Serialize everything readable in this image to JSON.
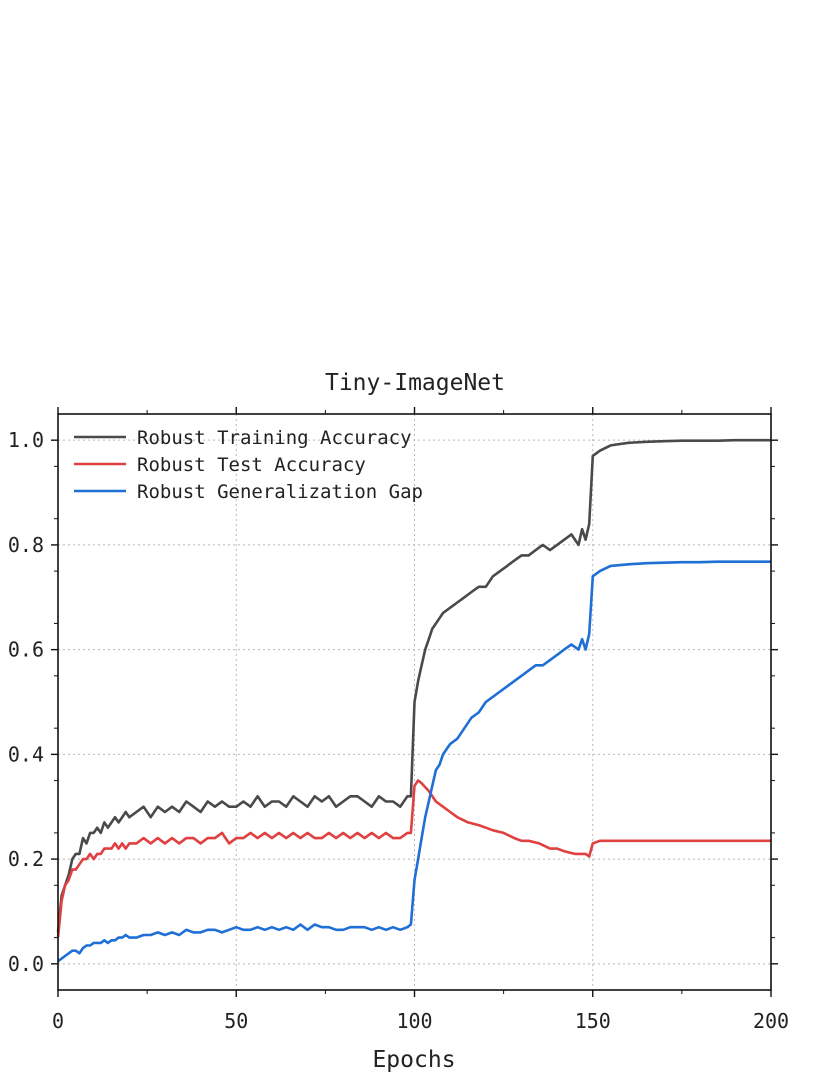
{
  "chart_data": {
    "type": "line",
    "title": "Tiny-ImageNet",
    "xlabel": "Epochs",
    "ylabel": "",
    "xlim": [
      0,
      200
    ],
    "ylim": [
      -0.05,
      1.05
    ],
    "xticks": [
      0,
      50,
      100,
      150,
      200
    ],
    "xtick_labels": [
      "0",
      "50",
      "100",
      "150",
      "200"
    ],
    "yticks": [
      0.0,
      0.2,
      0.4,
      0.6,
      0.8,
      1.0
    ],
    "ytick_labels": [
      "0.0",
      "0.2",
      "0.4",
      "0.6",
      "0.8",
      "1.0"
    ],
    "grid": true,
    "legend_position": "upper-left",
    "colors": {
      "train": "#4a4a4a",
      "test": "#e04040",
      "gap": "#1f6fd6",
      "grid": "#b8b8b8"
    },
    "series": [
      {
        "name": "Robust Training Accuracy",
        "x": [
          0,
          1,
          2,
          3,
          4,
          5,
          6,
          7,
          8,
          9,
          10,
          11,
          12,
          13,
          14,
          15,
          16,
          17,
          18,
          19,
          20,
          22,
          24,
          26,
          28,
          30,
          32,
          34,
          36,
          38,
          40,
          42,
          44,
          46,
          48,
          50,
          52,
          54,
          56,
          58,
          60,
          62,
          64,
          66,
          68,
          70,
          72,
          74,
          76,
          78,
          80,
          82,
          84,
          86,
          88,
          90,
          92,
          94,
          96,
          98,
          99,
          100,
          101,
          102,
          103,
          104,
          105,
          106,
          107,
          108,
          110,
          112,
          114,
          116,
          118,
          120,
          122,
          124,
          126,
          128,
          130,
          132,
          134,
          136,
          138,
          140,
          142,
          144,
          146,
          147,
          148,
          149,
          150,
          152,
          155,
          160,
          165,
          170,
          175,
          180,
          185,
          190,
          195,
          200
        ],
        "values": [
          0.06,
          0.13,
          0.15,
          0.17,
          0.2,
          0.21,
          0.21,
          0.24,
          0.23,
          0.25,
          0.25,
          0.26,
          0.25,
          0.27,
          0.26,
          0.27,
          0.28,
          0.27,
          0.28,
          0.29,
          0.28,
          0.29,
          0.3,
          0.28,
          0.3,
          0.29,
          0.3,
          0.29,
          0.31,
          0.3,
          0.29,
          0.31,
          0.3,
          0.31,
          0.3,
          0.3,
          0.31,
          0.3,
          0.32,
          0.3,
          0.31,
          0.31,
          0.3,
          0.32,
          0.31,
          0.3,
          0.32,
          0.31,
          0.32,
          0.3,
          0.31,
          0.32,
          0.32,
          0.31,
          0.3,
          0.32,
          0.31,
          0.31,
          0.3,
          0.32,
          0.32,
          0.5,
          0.54,
          0.57,
          0.6,
          0.62,
          0.64,
          0.65,
          0.66,
          0.67,
          0.68,
          0.69,
          0.7,
          0.71,
          0.72,
          0.72,
          0.74,
          0.75,
          0.76,
          0.77,
          0.78,
          0.78,
          0.79,
          0.8,
          0.79,
          0.8,
          0.81,
          0.82,
          0.8,
          0.83,
          0.81,
          0.84,
          0.97,
          0.98,
          0.99,
          0.995,
          0.997,
          0.998,
          0.999,
          0.999,
          0.999,
          1.0,
          1.0,
          1.0
        ]
      },
      {
        "name": "Robust Test Accuracy",
        "x": [
          0,
          1,
          2,
          3,
          4,
          5,
          6,
          7,
          8,
          9,
          10,
          11,
          12,
          13,
          14,
          15,
          16,
          17,
          18,
          19,
          20,
          22,
          24,
          26,
          28,
          30,
          32,
          34,
          36,
          38,
          40,
          42,
          44,
          46,
          48,
          50,
          52,
          54,
          56,
          58,
          60,
          62,
          64,
          66,
          68,
          70,
          72,
          74,
          76,
          78,
          80,
          82,
          84,
          86,
          88,
          90,
          92,
          94,
          96,
          98,
          99,
          100,
          101,
          102,
          104,
          106,
          108,
          110,
          112,
          115,
          118,
          120,
          122,
          125,
          128,
          130,
          132,
          135,
          138,
          140,
          142,
          145,
          148,
          149,
          150,
          152,
          155,
          160,
          165,
          170,
          175,
          180,
          185,
          190,
          195,
          200
        ],
        "values": [
          0.05,
          0.12,
          0.15,
          0.16,
          0.18,
          0.18,
          0.19,
          0.2,
          0.2,
          0.21,
          0.2,
          0.21,
          0.21,
          0.22,
          0.22,
          0.22,
          0.23,
          0.22,
          0.23,
          0.22,
          0.23,
          0.23,
          0.24,
          0.23,
          0.24,
          0.23,
          0.24,
          0.23,
          0.24,
          0.24,
          0.23,
          0.24,
          0.24,
          0.25,
          0.23,
          0.24,
          0.24,
          0.25,
          0.24,
          0.25,
          0.24,
          0.25,
          0.24,
          0.25,
          0.24,
          0.25,
          0.24,
          0.24,
          0.25,
          0.24,
          0.25,
          0.24,
          0.25,
          0.24,
          0.25,
          0.24,
          0.25,
          0.24,
          0.24,
          0.25,
          0.25,
          0.34,
          0.35,
          0.345,
          0.33,
          0.31,
          0.3,
          0.29,
          0.28,
          0.27,
          0.265,
          0.26,
          0.255,
          0.25,
          0.24,
          0.235,
          0.235,
          0.23,
          0.22,
          0.22,
          0.215,
          0.21,
          0.21,
          0.205,
          0.23,
          0.235,
          0.235,
          0.235,
          0.235,
          0.235,
          0.235,
          0.235,
          0.235,
          0.235,
          0.235,
          0.235
        ]
      },
      {
        "name": "Robust Generalization Gap",
        "x": [
          0,
          1,
          2,
          3,
          4,
          5,
          6,
          7,
          8,
          9,
          10,
          11,
          12,
          13,
          14,
          15,
          16,
          17,
          18,
          19,
          20,
          22,
          24,
          26,
          28,
          30,
          32,
          34,
          36,
          38,
          40,
          42,
          44,
          46,
          48,
          50,
          52,
          54,
          56,
          58,
          60,
          62,
          64,
          66,
          68,
          70,
          72,
          74,
          76,
          78,
          80,
          82,
          84,
          86,
          88,
          90,
          92,
          94,
          96,
          98,
          99,
          100,
          101,
          102,
          103,
          104,
          105,
          106,
          107,
          108,
          110,
          112,
          114,
          116,
          118,
          120,
          122,
          124,
          126,
          128,
          130,
          132,
          134,
          136,
          138,
          140,
          142,
          144,
          146,
          147,
          148,
          149,
          150,
          152,
          155,
          160,
          165,
          170,
          175,
          180,
          185,
          190,
          195,
          200
        ],
        "values": [
          0.005,
          0.01,
          0.015,
          0.02,
          0.025,
          0.025,
          0.02,
          0.03,
          0.035,
          0.035,
          0.04,
          0.04,
          0.04,
          0.045,
          0.04,
          0.045,
          0.045,
          0.05,
          0.05,
          0.055,
          0.05,
          0.05,
          0.055,
          0.055,
          0.06,
          0.055,
          0.06,
          0.055,
          0.065,
          0.06,
          0.06,
          0.065,
          0.065,
          0.06,
          0.065,
          0.07,
          0.065,
          0.065,
          0.07,
          0.065,
          0.07,
          0.065,
          0.07,
          0.065,
          0.075,
          0.065,
          0.075,
          0.07,
          0.07,
          0.065,
          0.065,
          0.07,
          0.07,
          0.07,
          0.065,
          0.07,
          0.065,
          0.07,
          0.065,
          0.07,
          0.075,
          0.16,
          0.2,
          0.24,
          0.28,
          0.31,
          0.34,
          0.37,
          0.38,
          0.4,
          0.42,
          0.43,
          0.45,
          0.47,
          0.48,
          0.5,
          0.51,
          0.52,
          0.53,
          0.54,
          0.55,
          0.56,
          0.57,
          0.57,
          0.58,
          0.59,
          0.6,
          0.61,
          0.6,
          0.62,
          0.6,
          0.63,
          0.74,
          0.75,
          0.76,
          0.763,
          0.765,
          0.766,
          0.767,
          0.767,
          0.768,
          0.768,
          0.768,
          0.768
        ]
      }
    ]
  }
}
